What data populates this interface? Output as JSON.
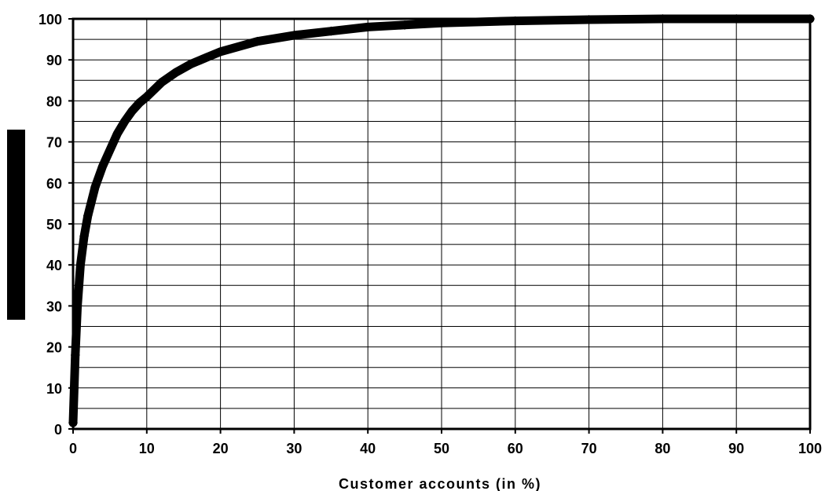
{
  "chart_data": {
    "type": "line",
    "title": "",
    "xlabel": "Customer accounts (in %)",
    "ylabel": "",
    "xlim": [
      0,
      100
    ],
    "ylim": [
      0,
      100
    ],
    "x_ticks": [
      "0",
      "10",
      "20",
      "30",
      "40",
      "50",
      "60",
      "70",
      "80",
      "90",
      "100"
    ],
    "y_ticks": [
      "0",
      "10",
      "20",
      "30",
      "40",
      "50",
      "60",
      "70",
      "80",
      "90",
      "100"
    ],
    "grid": true,
    "legend": "none",
    "series": [
      {
        "color": "#000000",
        "marker": "diamond",
        "x": [
          0,
          0.3,
          0.6,
          1,
          1.5,
          2,
          3,
          4,
          5,
          6,
          7,
          8,
          9,
          10,
          12,
          14,
          16,
          18,
          20,
          25,
          30,
          35,
          40,
          45,
          50,
          60,
          70,
          80,
          90,
          100
        ],
        "y": [
          1.5,
          18,
          30,
          40,
          47,
          52,
          59,
          64,
          68,
          72,
          75,
          77.5,
          79.5,
          81,
          84.5,
          87,
          89,
          90.5,
          92,
          94.5,
          96,
          97,
          98,
          98.5,
          99,
          99.5,
          99.8,
          100,
          100,
          100
        ]
      }
    ],
    "left_bar_color": "#000000"
  }
}
